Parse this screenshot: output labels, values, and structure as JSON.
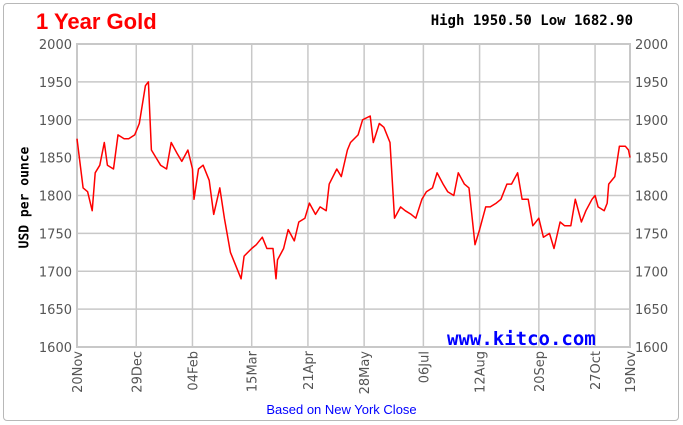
{
  "header": {
    "title": "1 Year Gold",
    "high_low": "High 1950.50 Low 1682.90"
  },
  "footer": "Based on New York Close",
  "watermark": "www.kitco.com",
  "colors": {
    "line": "#ff0000",
    "title": "#ff0000",
    "link": "#0000ff",
    "grid": "#c8c8c8"
  },
  "chart_data": {
    "type": "line",
    "title": "1 Year Gold",
    "ylabel": "USD per ounce",
    "xlabel": "",
    "ylim": [
      1600,
      2000
    ],
    "yticks": [
      1600,
      1650,
      1700,
      1750,
      1800,
      1850,
      1900,
      1950,
      2000
    ],
    "xlim": [
      "2020-11-20",
      "2021-11-19"
    ],
    "xticks": [
      {
        "date": "2020-11-20",
        "label": "20Nov"
      },
      {
        "date": "2020-12-29",
        "label": "29Dec"
      },
      {
        "date": "2021-02-04",
        "label": "04Feb"
      },
      {
        "date": "2021-03-15",
        "label": "15Mar"
      },
      {
        "date": "2021-04-21",
        "label": "21Apr"
      },
      {
        "date": "2021-05-28",
        "label": "28May"
      },
      {
        "date": "2021-07-06",
        "label": "06Jul"
      },
      {
        "date": "2021-08-12",
        "label": "12Aug"
      },
      {
        "date": "2021-09-20",
        "label": "20Sep"
      },
      {
        "date": "2021-10-27",
        "label": "27Oct"
      },
      {
        "date": "2021-11-19",
        "label": "19Nov"
      }
    ],
    "grid": true,
    "y_axis_sides": "both",
    "series": [
      {
        "x": [
          "2020-11-20",
          "2020-11-24",
          "2020-11-27",
          "2020-11-30",
          "2020-12-02",
          "2020-12-05",
          "2020-12-08",
          "2020-12-10",
          "2020-12-14",
          "2020-12-17",
          "2020-12-21",
          "2020-12-24",
          "2020-12-28",
          "2020-12-31",
          "2021-01-04",
          "2021-01-06",
          "2021-01-08",
          "2021-01-11",
          "2021-01-14",
          "2021-01-18",
          "2021-01-21",
          "2021-01-25",
          "2021-01-28",
          "2021-02-01",
          "2021-02-04",
          "2021-02-05",
          "2021-02-08",
          "2021-02-11",
          "2021-02-15",
          "2021-02-18",
          "2021-02-22",
          "2021-02-25",
          "2021-03-01",
          "2021-03-04",
          "2021-03-08",
          "2021-03-10",
          "2021-03-15",
          "2021-03-18",
          "2021-03-22",
          "2021-03-25",
          "2021-03-29",
          "2021-03-31",
          "2021-04-01",
          "2021-04-05",
          "2021-04-08",
          "2021-04-12",
          "2021-04-15",
          "2021-04-19",
          "2021-04-22",
          "2021-04-26",
          "2021-04-29",
          "2021-05-03",
          "2021-05-05",
          "2021-05-10",
          "2021-05-13",
          "2021-05-17",
          "2021-05-19",
          "2021-05-24",
          "2021-05-27",
          "2021-06-01",
          "2021-06-03",
          "2021-06-07",
          "2021-06-10",
          "2021-06-14",
          "2021-06-17",
          "2021-06-21",
          "2021-06-24",
          "2021-06-28",
          "2021-07-01",
          "2021-07-05",
          "2021-07-08",
          "2021-07-12",
          "2021-07-15",
          "2021-07-19",
          "2021-07-22",
          "2021-07-26",
          "2021-07-29",
          "2021-08-02",
          "2021-08-05",
          "2021-08-09",
          "2021-08-12",
          "2021-08-16",
          "2021-08-19",
          "2021-08-23",
          "2021-08-26",
          "2021-08-30",
          "2021-09-02",
          "2021-09-06",
          "2021-09-09",
          "2021-09-13",
          "2021-09-16",
          "2021-09-20",
          "2021-09-23",
          "2021-09-27",
          "2021-09-30",
          "2021-10-04",
          "2021-10-07",
          "2021-10-11",
          "2021-10-14",
          "2021-10-18",
          "2021-10-21",
          "2021-10-25",
          "2021-10-27",
          "2021-10-29",
          "2021-11-02",
          "2021-11-04",
          "2021-11-05",
          "2021-11-09",
          "2021-11-12",
          "2021-11-16",
          "2021-11-18",
          "2021-11-19"
        ],
        "y": [
          1875,
          1810,
          1805,
          1780,
          1830,
          1840,
          1870,
          1840,
          1835,
          1880,
          1875,
          1875,
          1880,
          1895,
          1945,
          1950,
          1860,
          1850,
          1840,
          1835,
          1870,
          1855,
          1845,
          1860,
          1835,
          1795,
          1835,
          1840,
          1820,
          1775,
          1810,
          1770,
          1725,
          1710,
          1690,
          1720,
          1730,
          1735,
          1745,
          1730,
          1730,
          1690,
          1715,
          1730,
          1755,
          1740,
          1765,
          1770,
          1790,
          1775,
          1785,
          1780,
          1815,
          1835,
          1825,
          1860,
          1870,
          1880,
          1900,
          1905,
          1870,
          1895,
          1890,
          1870,
          1770,
          1785,
          1780,
          1775,
          1770,
          1795,
          1805,
          1810,
          1830,
          1815,
          1805,
          1800,
          1830,
          1815,
          1810,
          1735,
          1755,
          1785,
          1785,
          1790,
          1795,
          1815,
          1815,
          1830,
          1795,
          1795,
          1760,
          1770,
          1745,
          1750,
          1730,
          1765,
          1760,
          1760,
          1795,
          1765,
          1780,
          1795,
          1800,
          1785,
          1780,
          1790,
          1815,
          1825,
          1865,
          1865,
          1860,
          1850
        ]
      }
    ]
  }
}
